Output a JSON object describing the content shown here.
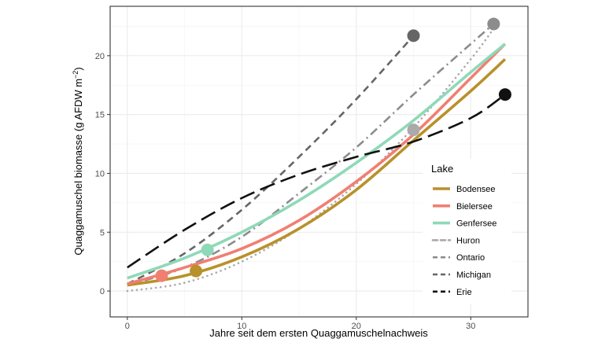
{
  "chart_data": {
    "type": "line",
    "xlabel": "Jahre seit dem ersten Quaggamuschelnachweis",
    "ylabel_prefix": "Quaggamuschel biomasse (g AFDW m",
    "ylabel_sup": "−2",
    "ylabel_suffix": ")",
    "xlim": [
      -1.5,
      35
    ],
    "ylim": [
      -2.2,
      24.2
    ],
    "x_ticks": [
      0,
      10,
      20,
      30
    ],
    "x_tick_labels": [
      "0",
      "10",
      "20",
      "30"
    ],
    "y_ticks": [
      0,
      5,
      10,
      15,
      20
    ],
    "y_tick_labels": [
      "0",
      "5",
      "10",
      "15",
      "20"
    ],
    "grid": true,
    "legend_title": "Lake",
    "legend_position": "right-inside",
    "series": [
      {
        "name": "Bodensee",
        "color": "#B8912B",
        "style": "solid",
        "x": [
          0,
          5,
          10,
          15,
          20,
          25,
          30,
          33
        ],
        "y": [
          0.5,
          1.3,
          2.9,
          5.3,
          8.6,
          12.8,
          17.0,
          19.7
        ],
        "point": {
          "x": 6,
          "y": 1.7
        }
      },
      {
        "name": "Bielersee",
        "color": "#F07F72",
        "style": "solid",
        "x": [
          0,
          5,
          10,
          15,
          20,
          25,
          30,
          33
        ],
        "y": [
          0.6,
          2.0,
          3.6,
          6.0,
          9.3,
          13.3,
          18.1,
          21.0
        ],
        "point": {
          "x": 3,
          "y": 1.3
        }
      },
      {
        "name": "Genfersee",
        "color": "#8ED9B8",
        "style": "solid",
        "x": [
          0,
          5,
          10,
          15,
          20,
          25,
          30,
          33
        ],
        "y": [
          1.1,
          2.8,
          5.0,
          7.7,
          10.9,
          14.5,
          18.6,
          21.0
        ],
        "point": {
          "x": 7,
          "y": 3.5
        }
      },
      {
        "name": "Huron",
        "color": "#AAAAAA",
        "style": "dotted",
        "x": [
          0,
          5,
          10,
          15,
          20,
          25,
          30,
          32
        ],
        "y": [
          0.0,
          0.7,
          2.5,
          5.3,
          9.1,
          13.9,
          19.7,
          22.3
        ],
        "point": {
          "x": 25,
          "y": 13.7
        }
      },
      {
        "name": "Ontario",
        "color": "#8C8C8C",
        "style": "dashdot",
        "x": [
          0,
          5,
          10,
          15,
          20,
          25,
          30,
          32
        ],
        "y": [
          0.5,
          2.0,
          4.6,
          8.3,
          12.2,
          16.7,
          21.0,
          22.7
        ],
        "point": {
          "x": 32,
          "y": 22.7
        }
      },
      {
        "name": "Michigan",
        "color": "#666666",
        "style": "dashed",
        "x": [
          0,
          5,
          10,
          15,
          20,
          25
        ],
        "y": [
          0.6,
          3.2,
          6.9,
          11.4,
          16.3,
          21.7
        ],
        "point": {
          "x": 25,
          "y": 21.7
        }
      },
      {
        "name": "Erie",
        "color": "#111111",
        "style": "longdash",
        "x": [
          0,
          5,
          10,
          15,
          20,
          25,
          30,
          33
        ],
        "y": [
          2.0,
          5.2,
          7.9,
          9.9,
          11.4,
          12.7,
          14.7,
          16.7
        ],
        "point": {
          "x": 33,
          "y": 16.7
        }
      }
    ]
  }
}
